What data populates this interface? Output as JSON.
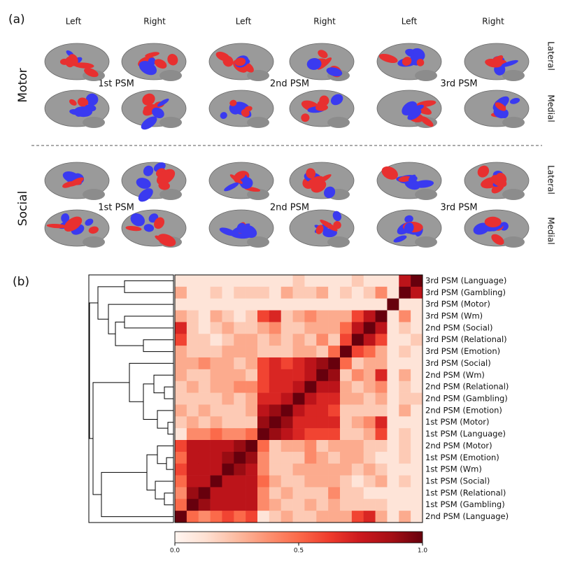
{
  "panel_a": {
    "label": "(a)",
    "hemispheres": [
      "Left",
      "Right",
      "Left",
      "Right",
      "Left",
      "Right"
    ],
    "views": [
      "Lateral",
      "Medial"
    ],
    "tasks": [
      "Motor",
      "Social"
    ],
    "psms": [
      "1st PSM",
      "2nd PSM",
      "3rd PSM"
    ]
  },
  "chart_data": {
    "type": "heatmap",
    "label": "(b)",
    "colormap": "Reds",
    "row_labels": [
      "3rd PSM (Language)",
      "3rd PSM (Gambling)",
      "3rd PSM (Motor)",
      "3rd PSM (Wm)",
      "2nd PSM (Social)",
      "3rd PSM (Relational)",
      "3rd PSM (Emotion)",
      "3rd PSM (Social)",
      "2nd PSM (Wm)",
      "2nd PSM (Relational)",
      "2nd PSM (Gambling)",
      "2nd PSM (Emotion)",
      "1st PSM (Motor)",
      "1st PSM (Language)",
      "2nd PSM (Motor)",
      "1st PSM (Emotion)",
      "1st PSM (Wm)",
      "1st PSM (Social)",
      "1st PSM (Relational)",
      "1st PSM (Gambling)",
      "2nd PSM (Language)"
    ],
    "values": [
      [
        0.1,
        0.1,
        0.1,
        0.1,
        0.1,
        0.1,
        0.1,
        0.1,
        0.1,
        0.1,
        0.2,
        0.1,
        0.1,
        0.1,
        0.1,
        0.2,
        0.1,
        0.1,
        0.1,
        0.8,
        1
      ],
      [
        0.3,
        0.1,
        0.1,
        0.2,
        0.1,
        0.2,
        0.2,
        0.2,
        0.1,
        0.3,
        0.2,
        0.2,
        0.3,
        0.1,
        0.2,
        0.1,
        0.2,
        0.4,
        0.1,
        1,
        0.8
      ],
      [
        0.1,
        0.1,
        0.1,
        0.1,
        0.1,
        0.1,
        0.1,
        0.1,
        0.1,
        0.1,
        0.1,
        0.1,
        0.1,
        0.1,
        0.1,
        0.1,
        0.1,
        0.1,
        1,
        0.1,
        0.1
      ],
      [
        0.3,
        0.2,
        0.1,
        0.3,
        0.2,
        0.1,
        0.2,
        0.6,
        0.7,
        0.2,
        0.3,
        0.4,
        0.3,
        0.3,
        0.3,
        0.6,
        0.8,
        1,
        0.1,
        0.4,
        0.1
      ],
      [
        0.7,
        0.2,
        0.1,
        0.2,
        0.3,
        0.2,
        0.2,
        0.3,
        0.4,
        0.2,
        0.2,
        0.3,
        0.3,
        0.3,
        0.5,
        0.8,
        1,
        0.8,
        0.1,
        0.2,
        0.1
      ],
      [
        0.6,
        0.2,
        0.2,
        0.1,
        0.2,
        0.3,
        0.3,
        0.2,
        0.3,
        0.2,
        0.3,
        0.2,
        0.4,
        0.2,
        0.6,
        1,
        0.8,
        0.6,
        0.1,
        0.1,
        0.2
      ],
      [
        0.3,
        0.2,
        0.2,
        0.2,
        0.3,
        0.3,
        0.3,
        0.2,
        0.2,
        0.2,
        0.3,
        0.3,
        0.2,
        0.5,
        1,
        0.6,
        0.5,
        0.3,
        0.1,
        0.2,
        0.1
      ],
      [
        0.3,
        0.3,
        0.4,
        0.3,
        0.3,
        0.2,
        0.3,
        0.6,
        0.7,
        0.6,
        0.7,
        0.8,
        0.9,
        1,
        0.5,
        0.2,
        0.3,
        0.3,
        0.1,
        0.1,
        0.1
      ],
      [
        0.3,
        0.2,
        0.2,
        0.3,
        0.3,
        0.3,
        0.2,
        0.6,
        0.7,
        0.7,
        0.7,
        0.8,
        1,
        0.9,
        0.2,
        0.4,
        0.3,
        0.7,
        0.1,
        0.3,
        0.1
      ],
      [
        0.2,
        0.3,
        0.2,
        0.3,
        0.3,
        0.4,
        0.4,
        0.6,
        0.7,
        0.7,
        0.8,
        1,
        0.8,
        0.8,
        0.3,
        0.2,
        0.3,
        0.4,
        0.1,
        0.2,
        0.1
      ],
      [
        0.2,
        0.2,
        0.2,
        0.2,
        0.3,
        0.2,
        0.3,
        0.7,
        0.7,
        0.8,
        1,
        0.8,
        0.7,
        0.7,
        0.3,
        0.3,
        0.2,
        0.3,
        0.1,
        0.2,
        0.2
      ],
      [
        0.3,
        0.2,
        0.3,
        0.2,
        0.2,
        0.2,
        0.3,
        0.8,
        0.9,
        1,
        0.8,
        0.7,
        0.7,
        0.6,
        0.2,
        0.2,
        0.2,
        0.2,
        0.1,
        0.3,
        0.1
      ],
      [
        0.2,
        0.3,
        0.2,
        0.3,
        0.2,
        0.2,
        0.2,
        0.9,
        1,
        0.9,
        0.7,
        0.7,
        0.7,
        0.7,
        0.2,
        0.3,
        0.4,
        0.7,
        0.1,
        0.1,
        0.1
      ],
      [
        0.1,
        0.4,
        0.4,
        0.5,
        0.4,
        0.4,
        0.5,
        1,
        0.9,
        0.8,
        0.7,
        0.6,
        0.6,
        0.6,
        0.2,
        0.2,
        0.3,
        0.6,
        0.1,
        0.2,
        0.1
      ],
      [
        0.6,
        0.8,
        0.8,
        0.8,
        0.8,
        0.9,
        1,
        0.5,
        0.2,
        0.3,
        0.3,
        0.4,
        0.2,
        0.3,
        0.3,
        0.3,
        0.2,
        0.2,
        0.1,
        0.2,
        0.1
      ],
      [
        0.5,
        0.8,
        0.8,
        0.8,
        0.9,
        1,
        0.9,
        0.4,
        0.2,
        0.2,
        0.2,
        0.4,
        0.3,
        0.2,
        0.3,
        0.3,
        0.2,
        0.1,
        0.1,
        0.2,
        0.1
      ],
      [
        0.6,
        0.8,
        0.8,
        0.8,
        1,
        0.9,
        0.8,
        0.4,
        0.2,
        0.2,
        0.3,
        0.3,
        0.3,
        0.3,
        0.3,
        0.2,
        0.3,
        0.2,
        0.1,
        0.1,
        0.1
      ],
      [
        0.5,
        0.8,
        0.8,
        1,
        0.8,
        0.8,
        0.8,
        0.5,
        0.3,
        0.2,
        0.2,
        0.3,
        0.3,
        0.3,
        0.2,
        0.1,
        0.2,
        0.3,
        0.1,
        0.2,
        0.1
      ],
      [
        0.4,
        0.9,
        1,
        0.8,
        0.8,
        0.8,
        0.8,
        0.4,
        0.2,
        0.3,
        0.2,
        0.2,
        0.2,
        0.4,
        0.2,
        0.2,
        0.1,
        0.1,
        0.1,
        0.1,
        0.1
      ],
      [
        0.5,
        1,
        0.9,
        0.8,
        0.8,
        0.8,
        0.8,
        0.4,
        0.3,
        0.2,
        0.2,
        0.3,
        0.2,
        0.3,
        0.2,
        0.2,
        0.2,
        0.2,
        0.1,
        0.1,
        0.1
      ],
      [
        1,
        0.5,
        0.4,
        0.5,
        0.6,
        0.5,
        0.6,
        0.1,
        0.2,
        0.3,
        0.2,
        0.2,
        0.3,
        0.3,
        0.3,
        0.6,
        0.7,
        0.3,
        0.1,
        0.3,
        0.1
      ]
    ],
    "clim": [
      0,
      1
    ],
    "cticks": [
      {
        "value": 0,
        "label": "0.0"
      },
      {
        "value": 0.5,
        "label": "0.5"
      },
      {
        "value": 1,
        "label": "1.0"
      }
    ]
  }
}
